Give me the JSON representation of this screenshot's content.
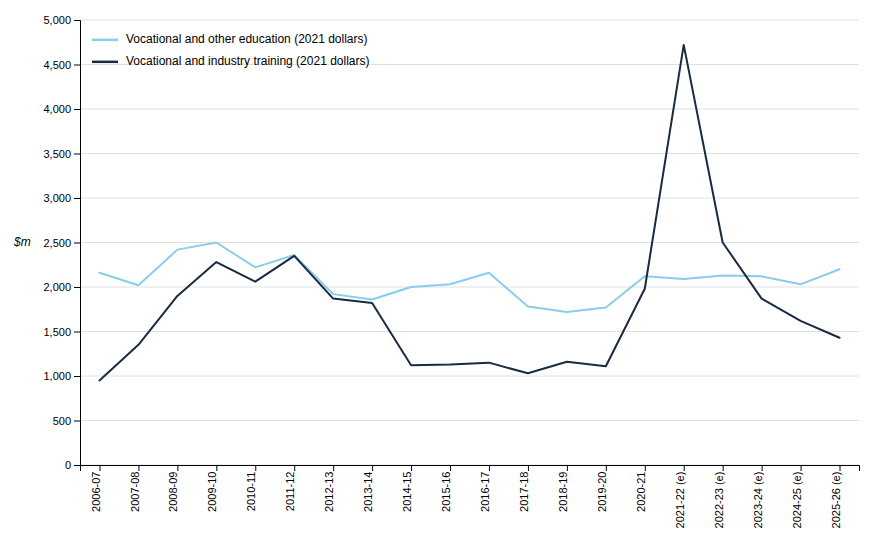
{
  "chart_data": {
    "type": "line",
    "ylabel": "$m",
    "categories": [
      "2006-07",
      "2007-08",
      "2008-09",
      "2009-10",
      "2010-11",
      "2011-12",
      "2012-13",
      "2013-14",
      "2014-15",
      "2015-16",
      "2016-17",
      "2017-18",
      "2018-19",
      "2019-20",
      "2020-21",
      "2021-22 (e)",
      "2022-23 (e)",
      "2023-24 (e)",
      "2024-25 (e)",
      "2025-26 (e)"
    ],
    "series": [
      {
        "name": "Vocational and other education (2021 dollars)",
        "color": "#87CEEB",
        "values": [
          2160,
          2020,
          2420,
          2500,
          2220,
          2360,
          1920,
          1860,
          2000,
          2030,
          2160,
          1780,
          1720,
          1770,
          2120,
          2090,
          2130,
          2120,
          2030,
          2200
        ]
      },
      {
        "name": "Vocational and industry training (2021 dollars)",
        "color": "#1a2a40",
        "values": [
          950,
          1350,
          1900,
          2280,
          2060,
          2350,
          1870,
          1820,
          1120,
          1130,
          1150,
          1030,
          1160,
          1110,
          1980,
          4720,
          2500,
          1870,
          1620,
          1430
        ]
      }
    ],
    "ylim": [
      0,
      5000
    ],
    "yticks": [
      0,
      500,
      {
        "value": 1000,
        "label": "1,000"
      },
      {
        "value": 1500,
        "label": "1,500"
      },
      {
        "value": 2000,
        "label": "2,000"
      },
      {
        "value": 2500,
        "label": "2,500"
      },
      {
        "value": 3000,
        "label": "3,000"
      },
      {
        "value": 3500,
        "label": "3,500"
      },
      {
        "value": 4000,
        "label": "4,000"
      },
      {
        "value": 4500,
        "label": "4,500"
      },
      {
        "value": 5000,
        "label": "5,000"
      }
    ],
    "grid": true,
    "legend": "upper left"
  }
}
